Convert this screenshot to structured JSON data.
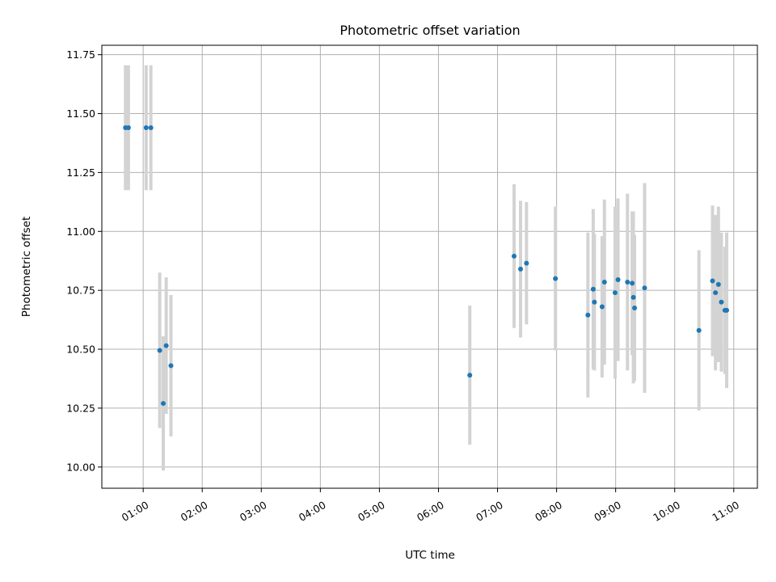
{
  "chart_data": {
    "type": "scatter",
    "title": "Photometric offset variation",
    "xlabel": "UTC time",
    "ylabel": "Photometric offset",
    "x_unit": "hours UTC",
    "xlim": [
      0.3,
      11.4
    ],
    "ylim": [
      9.91,
      11.79
    ],
    "x_ticks": [
      1,
      2,
      3,
      4,
      5,
      6,
      7,
      8,
      9,
      10,
      11
    ],
    "x_tick_labels": [
      "01:00",
      "02:00",
      "03:00",
      "04:00",
      "05:00",
      "06:00",
      "07:00",
      "08:00",
      "09:00",
      "10:00",
      "11:00"
    ],
    "y_ticks": [
      10.0,
      10.25,
      10.5,
      10.75,
      11.0,
      11.25,
      11.5,
      11.75
    ],
    "y_tick_labels": [
      "10.00",
      "10.25",
      "10.50",
      "10.75",
      "11.00",
      "11.25",
      "11.50",
      "11.75"
    ],
    "grid": true,
    "legend": "none",
    "colors": {
      "marker": "#1f77b4",
      "errorbar": "#d3d3d3",
      "grid": "#b0b0b0"
    },
    "points": [
      {
        "x": 0.7,
        "y": 11.44,
        "err": 0.265
      },
      {
        "x": 0.75,
        "y": 11.44,
        "err": 0.265
      },
      {
        "x": 1.05,
        "y": 11.44,
        "err": 0.265
      },
      {
        "x": 1.13,
        "y": 11.44,
        "err": 0.265
      },
      {
        "x": 1.28,
        "y": 10.495,
        "err": 0.33
      },
      {
        "x": 1.34,
        "y": 10.27,
        "err": 0.285
      },
      {
        "x": 1.39,
        "y": 10.515,
        "err": 0.29
      },
      {
        "x": 1.47,
        "y": 10.43,
        "err": 0.3
      },
      {
        "x": 6.53,
        "y": 10.39,
        "err": 0.295
      },
      {
        "x": 7.28,
        "y": 10.895,
        "err": 0.305
      },
      {
        "x": 7.39,
        "y": 10.84,
        "err": 0.29
      },
      {
        "x": 7.49,
        "y": 10.865,
        "err": 0.26
      },
      {
        "x": 7.98,
        "y": 10.8,
        "err": 0.305
      },
      {
        "x": 8.53,
        "y": 10.645,
        "err": 0.35
      },
      {
        "x": 8.62,
        "y": 10.755,
        "err": 0.34
      },
      {
        "x": 8.64,
        "y": 10.7,
        "err": 0.29
      },
      {
        "x": 8.77,
        "y": 10.68,
        "err": 0.3
      },
      {
        "x": 8.81,
        "y": 10.785,
        "err": 0.35
      },
      {
        "x": 8.99,
        "y": 10.74,
        "err": 0.365
      },
      {
        "x": 9.04,
        "y": 10.795,
        "err": 0.345
      },
      {
        "x": 9.2,
        "y": 10.785,
        "err": 0.375
      },
      {
        "x": 9.28,
        "y": 10.78,
        "err": 0.305
      },
      {
        "x": 9.3,
        "y": 10.72,
        "err": 0.365
      },
      {
        "x": 9.32,
        "y": 10.675,
        "err": 0.31
      },
      {
        "x": 9.49,
        "y": 10.76,
        "err": 0.445
      },
      {
        "x": 10.41,
        "y": 10.58,
        "err": 0.34
      },
      {
        "x": 10.64,
        "y": 10.79,
        "err": 0.32
      },
      {
        "x": 10.69,
        "y": 10.74,
        "err": 0.33
      },
      {
        "x": 10.74,
        "y": 10.775,
        "err": 0.33
      },
      {
        "x": 10.79,
        "y": 10.7,
        "err": 0.295
      },
      {
        "x": 10.85,
        "y": 10.665,
        "err": 0.27
      },
      {
        "x": 10.88,
        "y": 10.665,
        "err": 0.33
      }
    ]
  }
}
